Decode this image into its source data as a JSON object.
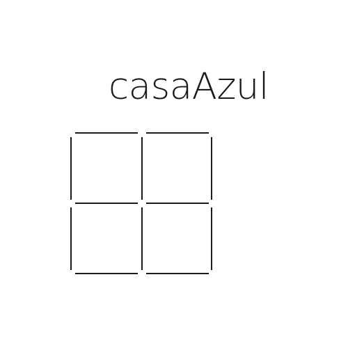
{
  "logo": {
    "wordmark": "casaAzul",
    "mark_icon": "four-pane-grid-icon",
    "ink_color": "#1a1a1a",
    "background_color": "#ffffff"
  }
}
